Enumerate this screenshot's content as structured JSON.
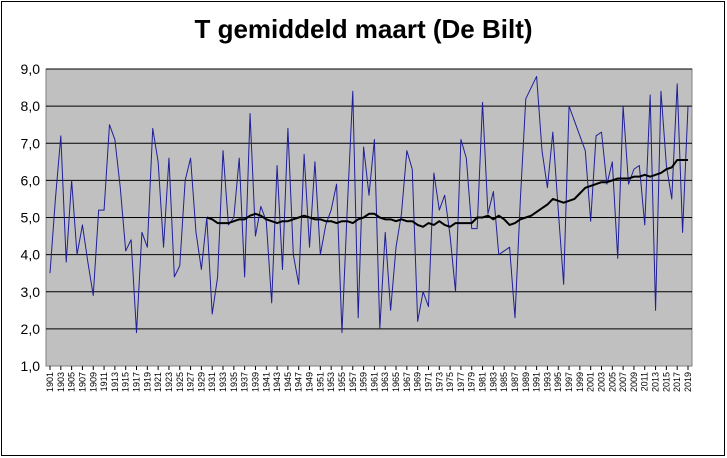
{
  "chart_data": {
    "type": "line",
    "title": "T gemiddeld maart (De Bilt)",
    "xlabel": "",
    "ylabel": "",
    "ylim": [
      1.0,
      9.0
    ],
    "y_ticks": [
      "1,0",
      "2,0",
      "3,0",
      "4,0",
      "5,0",
      "6,0",
      "7,0",
      "8,0",
      "9,0"
    ],
    "x_start": 1901,
    "x_end": 2019,
    "x_tick_labels": [
      "1901",
      "1903",
      "1905",
      "1907",
      "1909",
      "1911",
      "1913",
      "1915",
      "1917",
      "1919",
      "1921",
      "1923",
      "1925",
      "1927",
      "1929",
      "1931",
      "1933",
      "1935",
      "1937",
      "1939",
      "1941",
      "1943",
      "1945",
      "1947",
      "1949",
      "1951",
      "1953",
      "1955",
      "1957",
      "1959",
      "1961",
      "1963",
      "1965",
      "1967",
      "1969",
      "1971",
      "1973",
      "1975",
      "1977",
      "1979",
      "1981",
      "1983",
      "1985",
      "1987",
      "1989",
      "1991",
      "1993",
      "1995",
      "1997",
      "1999",
      "2001",
      "2003",
      "2005",
      "2007",
      "2009",
      "2011",
      "2013",
      "2015",
      "2017",
      "2019"
    ],
    "grid": true,
    "legend": "none",
    "colors": {
      "plot_bg": "#c0c0c0",
      "annual": "#1f1f99",
      "average": "#000000",
      "grid": "#000000"
    },
    "series": [
      {
        "values": [
          3.5,
          5.5,
          7.2,
          3.8,
          6.0,
          4.0,
          4.8,
          3.8,
          2.9,
          5.2,
          5.2,
          7.5,
          7.1,
          5.8,
          4.1,
          4.4,
          1.9,
          4.6,
          4.2,
          7.4,
          6.5,
          4.2,
          6.6,
          3.4,
          3.7,
          6.0,
          6.6,
          4.6,
          3.6,
          5.0,
          2.4,
          3.4,
          6.8,
          4.8,
          5.0,
          6.6,
          3.4,
          7.8,
          4.5,
          5.3,
          4.9,
          2.7,
          6.4,
          3.6,
          7.4,
          4.0,
          3.2,
          6.7,
          4.2,
          6.5,
          4.0,
          4.8,
          5.2,
          5.9,
          1.9,
          5.3,
          8.4,
          2.3,
          6.9,
          5.6,
          7.1,
          2.0,
          4.6,
          2.5,
          4.2,
          5.1,
          6.8,
          6.3,
          2.2,
          3.0,
          2.6,
          6.2,
          5.2,
          5.6,
          4.5,
          3.0,
          7.1,
          6.6,
          4.7,
          4.7,
          8.1,
          5.1,
          5.7,
          4.0,
          4.1,
          4.2,
          2.3,
          5.5,
          8.2,
          8.5,
          8.8,
          6.8,
          5.8,
          7.3,
          5.2,
          3.2,
          8.0,
          7.6,
          7.2,
          6.8,
          4.9,
          7.2,
          7.3,
          5.9,
          6.5,
          3.9,
          8.0,
          5.9,
          6.3,
          6.4,
          4.8,
          8.3,
          2.5,
          8.4,
          6.4,
          5.5,
          8.6,
          4.6,
          8.0
        ]
      },
      {
        "start": 1930,
        "values": [
          5.0,
          4.95,
          4.85,
          4.85,
          4.85,
          4.9,
          4.95,
          4.95,
          5.05,
          5.1,
          5.05,
          4.95,
          4.9,
          4.85,
          4.9,
          4.9,
          4.95,
          5.0,
          5.05,
          5.0,
          4.95,
          4.95,
          4.9,
          4.9,
          4.85,
          4.9,
          4.9,
          4.85,
          4.95,
          5.0,
          5.1,
          5.1,
          5.0,
          4.95,
          4.95,
          4.9,
          4.95,
          4.9,
          4.9,
          4.8,
          4.75,
          4.85,
          4.8,
          4.9,
          4.8,
          4.75,
          4.85,
          4.85,
          4.85,
          4.85,
          5.0,
          5.0,
          5.05,
          4.95,
          5.05,
          4.95,
          4.8,
          4.85,
          4.95,
          5.0,
          5.05,
          5.15,
          5.25,
          5.35,
          5.5,
          5.45,
          5.4,
          5.45,
          5.5,
          5.65,
          5.8,
          5.85,
          5.9,
          5.95,
          5.95,
          6.0,
          6.05,
          6.05,
          6.05,
          6.1,
          6.1,
          6.15,
          6.1,
          6.15,
          6.2,
          6.3,
          6.35,
          6.55,
          6.55,
          6.55
        ]
      }
    ]
  }
}
